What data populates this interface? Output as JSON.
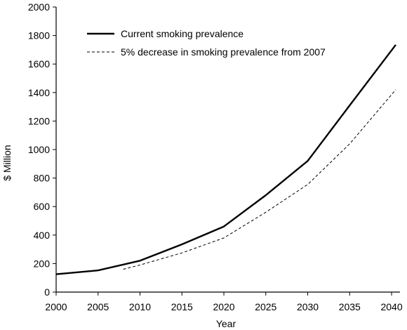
{
  "chart_data": {
    "type": "line",
    "title": "",
    "xlabel": "Year",
    "ylabel": "$ Million",
    "xlim": [
      2000,
      2041
    ],
    "ylim": [
      0,
      2000
    ],
    "x_ticks": [
      2000,
      2005,
      2010,
      2015,
      2020,
      2025,
      2030,
      2035,
      2040
    ],
    "y_ticks": [
      0,
      200,
      400,
      600,
      800,
      1000,
      1200,
      1400,
      1600,
      1800,
      2000
    ],
    "grid": false,
    "legend_position": "top-left",
    "series": [
      {
        "name": "Current smoking prevalence",
        "style": "solid",
        "color": "#000000",
        "x": [
          2000,
          2005,
          2010,
          2015,
          2020,
          2025,
          2030,
          2035,
          2040.5
        ],
        "y": [
          125,
          152,
          220,
          335,
          460,
          680,
          920,
          1310,
          1735
        ]
      },
      {
        "name": "5% decrease in smoking prevalence from 2007",
        "style": "dashed",
        "color": "#000000",
        "x": [
          2008,
          2010,
          2015,
          2020,
          2025,
          2030,
          2035,
          2040.5
        ],
        "y": [
          160,
          190,
          275,
          380,
          560,
          755,
          1040,
          1420
        ]
      }
    ]
  }
}
